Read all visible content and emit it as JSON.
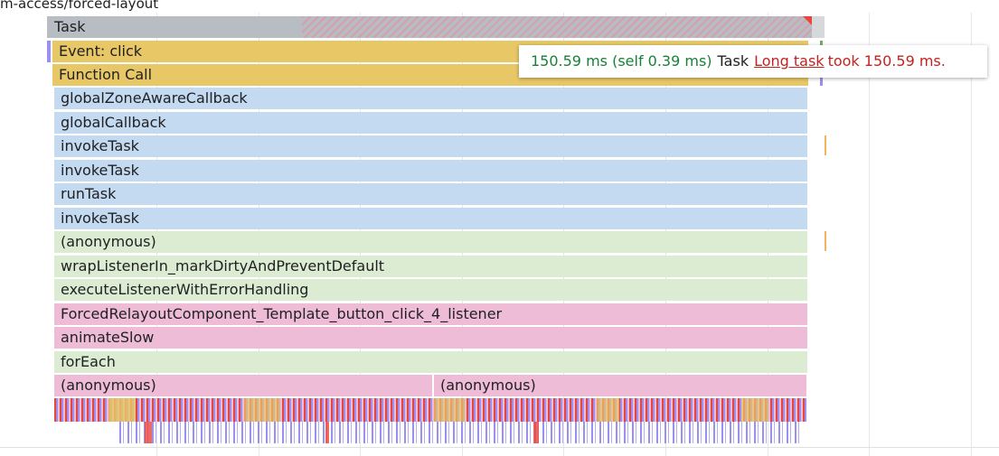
{
  "header": {
    "url_fragment": "m-access/forced-layout"
  },
  "flame": {
    "task": "Task",
    "rows": [
      {
        "label": "Event: click",
        "color": "#e8c766"
      },
      {
        "label": "Function Call",
        "color": "#e8c766"
      },
      {
        "label": "globalZoneAwareCallback",
        "color": "#c4daf0"
      },
      {
        "label": "globalCallback",
        "color": "#c4daf0"
      },
      {
        "label": "invokeTask",
        "color": "#c4daf0"
      },
      {
        "label": "invokeTask",
        "color": "#c4daf0"
      },
      {
        "label": "runTask",
        "color": "#c4daf0"
      },
      {
        "label": "invokeTask",
        "color": "#c4daf0"
      },
      {
        "label": "(anonymous)",
        "color": "#dcecd2"
      },
      {
        "label": "wrapListenerIn_markDirtyAndPreventDefault",
        "color": "#dcecd2"
      },
      {
        "label": "executeListenerWithErrorHandling",
        "color": "#dcecd2"
      },
      {
        "label": "ForcedRelayoutComponent_Template_button_click_4_listener",
        "color": "#efbcd8"
      },
      {
        "label": "animateSlow",
        "color": "#efbcd8"
      },
      {
        "label": "forEach",
        "color": "#dcecd2"
      }
    ],
    "split_row": [
      {
        "label": "(anonymous)"
      },
      {
        "label": "(anonymous)"
      }
    ]
  },
  "tooltip": {
    "time": "150.59 ms (self 0.39 ms)",
    "name": "Task",
    "link": "Long task",
    "message": "took 150.59 ms."
  }
}
